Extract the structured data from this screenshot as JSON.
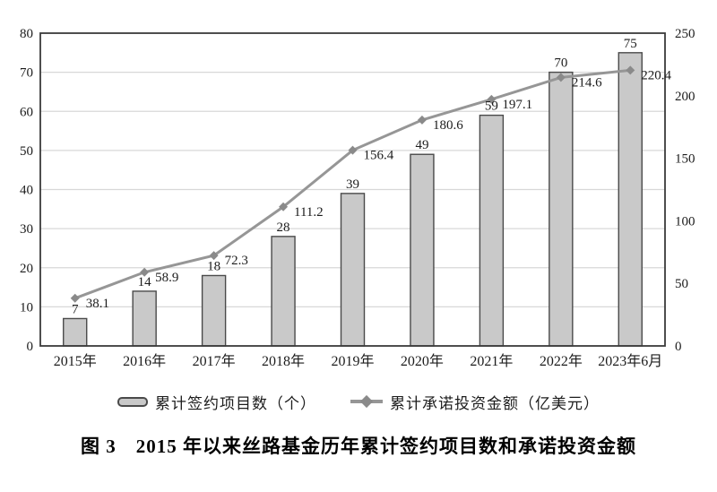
{
  "figure": {
    "caption": "图 3　2015 年以来丝路基金历年累计签约项目数和承诺投资金额"
  },
  "chart_data": {
    "type": "bar+line",
    "categories": [
      "2015年",
      "2016年",
      "2017年",
      "2018年",
      "2019年",
      "2020年",
      "2021年",
      "2022年",
      "2023年6月"
    ],
    "series": [
      {
        "name": "累计签约项目数（个）",
        "type": "bar",
        "axis": "left",
        "values": [
          7,
          14,
          18,
          28,
          39,
          49,
          59,
          70,
          75
        ]
      },
      {
        "name": "累计承诺投资金额（亿美元）",
        "type": "line",
        "axis": "right",
        "values": [
          38.1,
          58.9,
          72.3,
          111.2,
          156.4,
          180.6,
          197.1,
          214.6,
          220.4
        ]
      }
    ],
    "left_axis": {
      "min": 0,
      "max": 80,
      "ticks": [
        0,
        10,
        20,
        30,
        40,
        50,
        60,
        70,
        80
      ]
    },
    "right_axis": {
      "min": 0,
      "max": 250,
      "ticks": [
        0,
        50,
        100,
        150,
        200,
        250
      ]
    },
    "grid": true,
    "legend_position": "bottom",
    "colors": {
      "bar_fill": "#c9c9c9",
      "bar_border": "#4a4a4a",
      "line": "#969696",
      "marker": "#8a8a8a",
      "grid": "#d8d8d8",
      "plot_border": "#3a3a3a",
      "text": "#1c1c1c"
    }
  },
  "legend": {
    "items": [
      {
        "label": "累计签约项目数（个）",
        "swatch": "bar"
      },
      {
        "label": "累计承诺投资金额（亿美元）",
        "swatch": "line-diamond"
      }
    ]
  }
}
